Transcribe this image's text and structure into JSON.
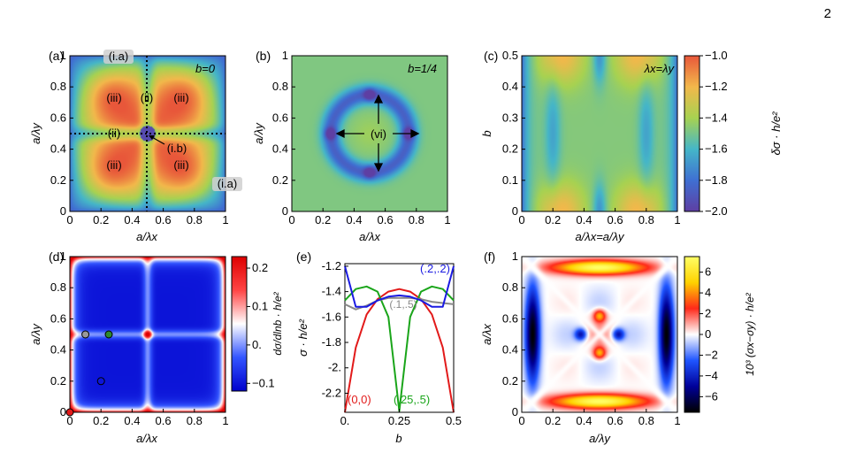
{
  "page": {
    "number": "2"
  },
  "colormaps": {
    "rainbow": [
      "#5e3fa3",
      "#3f6fd2",
      "#45b6c8",
      "#a7d251",
      "#f2b84b",
      "#e8573a"
    ],
    "diverging_rwb": [
      "#0000cc",
      "#3355ff",
      "#ffffff",
      "#ff4444",
      "#dd0000"
    ],
    "diverging_kbwry": [
      "#000000",
      "#000099",
      "#1f55ff",
      "#ffffff",
      "#ff2a1a",
      "#ffd200",
      "#ffff66"
    ]
  },
  "panels": {
    "a": {
      "label": "(a)",
      "xlabel": "a/λx",
      "ylabel": "a/λy",
      "xticks": [
        "0",
        "0.2",
        "0.4",
        "0.6",
        "0.8",
        "1"
      ],
      "yticks": [
        "0",
        "0.2",
        "0.4",
        "0.6",
        "0.8",
        "1"
      ],
      "tag": "b=0",
      "regions": {
        "i_a_top": "(i.a)",
        "i_a_right": "(i.a)",
        "ii_top": "(ii)",
        "ii_left": "(ii)",
        "iii_tl": "(iii)",
        "iii_tr": "(iii)",
        "iii_bl": "(iii)",
        "iii_br": "(iii)",
        "i_b": "(i.b)"
      }
    },
    "b": {
      "label": "(b)",
      "xlabel": "a/λx",
      "ylabel": "a/λy",
      "xticks": [
        "0",
        "0.2",
        "0.4",
        "0.6",
        "0.8",
        "1"
      ],
      "yticks": [
        "0",
        "0.2",
        "0.4",
        "0.6",
        "0.8",
        "1"
      ],
      "tag": "b=1/4",
      "region": "(vi)"
    },
    "c": {
      "label": "(c)",
      "xlabel": "a/λx=a/λy",
      "ylabel": "b",
      "xticks": [
        "0",
        "0.2",
        "0.4",
        "0.6",
        "0.8",
        "1"
      ],
      "yticks": [
        "0",
        "0.1",
        "0.2",
        "0.3",
        "0.4",
        "0.5"
      ],
      "tag": "λx=λy",
      "colorbar": {
        "label": "δσ · h/e²",
        "ticks": [
          "-1.0",
          "-1.2",
          "-1.4",
          "-1.6",
          "-1.8",
          "-2.0"
        ],
        "range": [
          -2.0,
          -1.0
        ]
      }
    },
    "d": {
      "label": "(d)",
      "xlabel": "a/λx",
      "ylabel": "a/λy",
      "xticks": [
        "0",
        "0.2",
        "0.4",
        "0.6",
        "0.8",
        "1"
      ],
      "yticks": [
        "0",
        "0.2",
        "0.4",
        "0.6",
        "0.8",
        "1"
      ],
      "colorbar": {
        "label": "dσ/dlnb · h/e²",
        "ticks": [
          "0.2",
          "0.1",
          "0.",
          "-0.1"
        ],
        "range": [
          -0.12,
          0.23
        ]
      },
      "markers": [
        {
          "x": 0,
          "y": 0,
          "color": "#e21a1a"
        },
        {
          "x": 0.1,
          "y": 0.5,
          "color": "#999999"
        },
        {
          "x": 0.25,
          "y": 0.5,
          "color": "#2e8b2e"
        },
        {
          "x": 0.2,
          "y": 0.2,
          "color": "none"
        }
      ]
    },
    "e": {
      "label": "(e)",
      "xlabel": "b",
      "ylabel": "σ · h/e²",
      "xticks": [
        "0.",
        "0.25",
        "0.5"
      ],
      "yticks": [
        "-1.2",
        "-1.4",
        "-1.6",
        "-1.8",
        "-2.",
        "-2.2"
      ],
      "series": [
        {
          "name": "(0,0)",
          "color": "#e21a1a"
        },
        {
          "name": "(.25,.5)",
          "color": "#1aa51a"
        },
        {
          "name": "(.1,.5)",
          "color": "#888888"
        },
        {
          "name": "(.2,.2)",
          "color": "#1a1ae2"
        }
      ]
    },
    "f": {
      "label": "(f)",
      "xlabel": "a/λy",
      "ylabel": "a/λx",
      "xticks": [
        "0",
        "0.2",
        "0.4",
        "0.6",
        "0.8",
        "1"
      ],
      "yticks": [
        "0",
        "0.2",
        "0.4",
        "0.6",
        "0.8",
        "1"
      ],
      "colorbar": {
        "label": "10³ (σx−σy) · h/e²",
        "ticks": [
          "6",
          "4",
          "2",
          "0",
          "-2",
          "-4",
          "-6"
        ],
        "range": [
          -7.5,
          7.5
        ]
      }
    }
  },
  "chart_data": [
    {
      "type": "heatmap",
      "panel": "a",
      "xlim": [
        0,
        1
      ],
      "ylim": [
        0,
        1
      ]
    },
    {
      "type": "heatmap",
      "panel": "b",
      "xlim": [
        0,
        1
      ],
      "ylim": [
        0,
        1
      ]
    },
    {
      "type": "heatmap",
      "panel": "c",
      "xlim": [
        0,
        1
      ],
      "ylim": [
        0,
        0.5
      ],
      "zlim": [
        -2.0,
        -1.0
      ]
    },
    {
      "type": "heatmap",
      "panel": "d",
      "xlim": [
        0,
        1
      ],
      "ylim": [
        0,
        1
      ],
      "zlim": [
        -0.12,
        0.23
      ]
    },
    {
      "type": "line",
      "panel": "e",
      "xlim": [
        0,
        0.5
      ],
      "ylim": [
        -2.35,
        -1.18
      ],
      "x": [
        0,
        0.05,
        0.1,
        0.15,
        0.2,
        0.25,
        0.3,
        0.35,
        0.4,
        0.45,
        0.5
      ],
      "series": [
        {
          "name": "(0,0)",
          "values": [
            -2.35,
            -1.84,
            -1.58,
            -1.46,
            -1.4,
            -1.38,
            -1.4,
            -1.46,
            -1.58,
            -1.84,
            -2.35
          ]
        },
        {
          "name": "(.25,.5)",
          "values": [
            -1.47,
            -1.38,
            -1.36,
            -1.4,
            -1.6,
            -2.34,
            -1.6,
            -1.4,
            -1.36,
            -1.38,
            -1.47
          ]
        },
        {
          "name": "(.1,.5)",
          "values": [
            -1.5,
            -1.54,
            -1.51,
            -1.47,
            -1.45,
            -1.45,
            -1.45,
            -1.46,
            -1.48,
            -1.49,
            -1.5
          ]
        },
        {
          "name": "(.2,.2)",
          "values": [
            -1.2,
            -1.52,
            -1.52,
            -1.47,
            -1.44,
            -1.43,
            -1.44,
            -1.47,
            -1.52,
            -1.52,
            -1.2
          ]
        }
      ]
    },
    {
      "type": "heatmap",
      "panel": "f",
      "xlim": [
        0,
        1
      ],
      "ylim": [
        0,
        1
      ],
      "zlim": [
        -7.5,
        7.5
      ]
    }
  ]
}
